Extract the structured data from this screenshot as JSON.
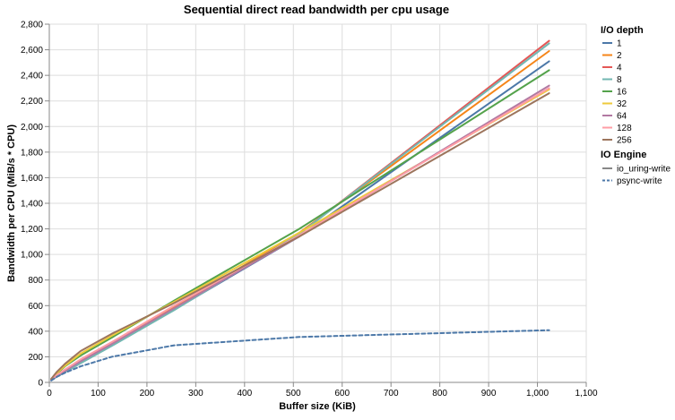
{
  "chart_data": {
    "type": "line",
    "title": "Sequential direct read bandwidth per cpu usage",
    "xlabel": "Buffer size (KiB)",
    "ylabel": "Bandwidth per CPU (MiB/s * CPU)",
    "xlim": [
      0,
      1100
    ],
    "ylim": [
      0,
      2800
    ],
    "x_ticks": [
      0,
      100,
      200,
      300,
      400,
      500,
      600,
      700,
      800,
      900,
      1000,
      1100
    ],
    "y_ticks": [
      0,
      200,
      400,
      600,
      800,
      1000,
      1200,
      1400,
      1600,
      1800,
      2000,
      2200,
      2400,
      2600,
      2800
    ],
    "x_tick_labels": [
      "0",
      "100",
      "200",
      "300",
      "400",
      "500",
      "600",
      "700",
      "800",
      "900",
      "1,000",
      "1,100"
    ],
    "y_tick_labels": [
      "0",
      "200",
      "400",
      "600",
      "800",
      "1,000",
      "1,200",
      "1,400",
      "1,600",
      "1,800",
      "2,000",
      "2,200",
      "2,400",
      "2,600",
      "2,800"
    ],
    "grid": true,
    "legend_position": "right",
    "legend_color_title": "I/O depth",
    "legend_dash_title": "IO Engine",
    "engines": [
      {
        "name": "io_uring-write",
        "dash": "solid"
      },
      {
        "name": "psync-write",
        "dash": "dashed"
      }
    ],
    "x": [
      4,
      16,
      32,
      64,
      128,
      256,
      512,
      1024
    ],
    "series": [
      {
        "name": "1",
        "engine": "io_uring-write",
        "color": "#4c78a8",
        "values": [
          20,
          50,
          85,
          160,
          300,
          570,
          1140,
          2510
        ]
      },
      {
        "name": "2",
        "engine": "io_uring-write",
        "color": "#f58518",
        "values": [
          22,
          55,
          90,
          170,
          305,
          590,
          1170,
          2590
        ]
      },
      {
        "name": "4",
        "engine": "io_uring-write",
        "color": "#e45756",
        "values": [
          20,
          48,
          82,
          155,
          290,
          570,
          1160,
          2670
        ]
      },
      {
        "name": "8",
        "engine": "io_uring-write",
        "color": "#72b7b2",
        "values": [
          20,
          45,
          80,
          150,
          285,
          565,
          1160,
          2650
        ]
      },
      {
        "name": "16",
        "engine": "io_uring-write",
        "color": "#54a24b",
        "values": [
          25,
          70,
          125,
          210,
          350,
          640,
          1200,
          2440
        ]
      },
      {
        "name": "32",
        "engine": "io_uring-write",
        "color": "#eeca3b",
        "values": [
          25,
          75,
          130,
          225,
          365,
          630,
          1170,
          2290
        ]
      },
      {
        "name": "64",
        "engine": "io_uring-write",
        "color": "#b279a2",
        "values": [
          20,
          50,
          88,
          165,
          300,
          580,
          1140,
          2320
        ]
      },
      {
        "name": "128",
        "engine": "io_uring-write",
        "color": "#ff9da6",
        "values": [
          22,
          58,
          100,
          180,
          315,
          600,
          1150,
          2300
        ]
      },
      {
        "name": "256",
        "engine": "io_uring-write",
        "color": "#9d755d",
        "values": [
          28,
          85,
          145,
          245,
          380,
          620,
          1140,
          2260
        ]
      },
      {
        "name": "psync",
        "engine": "psync-write",
        "color": "#4c78a8",
        "values": [
          15,
          45,
          75,
          125,
          200,
          290,
          355,
          408
        ]
      }
    ]
  }
}
